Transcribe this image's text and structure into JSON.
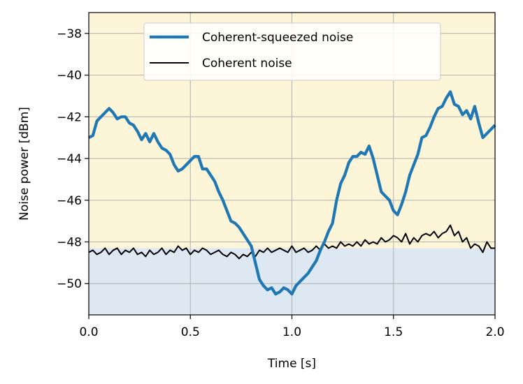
{
  "chart_data": {
    "type": "line",
    "xlabel": "Time [s]",
    "ylabel": "Noise power [dBm]",
    "xlim": [
      0.0,
      2.0
    ],
    "ylim": [
      -51.5,
      -37.0
    ],
    "x_ticks": [
      0.0,
      0.5,
      1.0,
      1.5,
      2.0
    ],
    "x_tick_labels": [
      "0.0",
      "0.5",
      "1.0",
      "1.5",
      "2.0"
    ],
    "y_ticks": [
      -50,
      -48,
      -46,
      -44,
      -42,
      -40,
      -38
    ],
    "y_tick_labels": [
      "−50",
      "−48",
      "−46",
      "−44",
      "−42",
      "−40",
      "−38"
    ],
    "grid": true,
    "legend_position": "top-center",
    "background_regions": [
      {
        "from": -51.5,
        "to": -48.3,
        "color": "#dde8f2"
      },
      {
        "from": -48.3,
        "to": -37.0,
        "color": "#fdf5d7"
      }
    ],
    "series": [
      {
        "name": "Coherent-squeezed noise",
        "color": "#1f77b4",
        "x": [
          0.0,
          0.02,
          0.04,
          0.06,
          0.08,
          0.1,
          0.12,
          0.14,
          0.16,
          0.18,
          0.2,
          0.22,
          0.24,
          0.26,
          0.28,
          0.3,
          0.32,
          0.34,
          0.36,
          0.38,
          0.4,
          0.42,
          0.44,
          0.46,
          0.48,
          0.5,
          0.52,
          0.54,
          0.56,
          0.58,
          0.6,
          0.62,
          0.64,
          0.66,
          0.68,
          0.7,
          0.72,
          0.74,
          0.76,
          0.78,
          0.8,
          0.82,
          0.84,
          0.86,
          0.88,
          0.9,
          0.92,
          0.94,
          0.96,
          0.98,
          1.0,
          1.02,
          1.04,
          1.06,
          1.08,
          1.1,
          1.12,
          1.14,
          1.16,
          1.18,
          1.2,
          1.22,
          1.24,
          1.26,
          1.28,
          1.3,
          1.32,
          1.34,
          1.36,
          1.38,
          1.4,
          1.42,
          1.44,
          1.46,
          1.48,
          1.5,
          1.52,
          1.54,
          1.56,
          1.58,
          1.6,
          1.62,
          1.64,
          1.66,
          1.68,
          1.7,
          1.72,
          1.74,
          1.76,
          1.78,
          1.8,
          1.82,
          1.84,
          1.86,
          1.88,
          1.9,
          1.92,
          1.94,
          1.96,
          1.98,
          2.0
        ],
        "values": [
          -43.0,
          -42.9,
          -42.2,
          -42.0,
          -41.8,
          -41.6,
          -41.8,
          -42.1,
          -42.0,
          -42.0,
          -42.3,
          -42.4,
          -42.7,
          -43.1,
          -42.8,
          -43.2,
          -42.8,
          -43.2,
          -43.5,
          -43.6,
          -43.8,
          -44.3,
          -44.6,
          -44.5,
          -44.3,
          -44.1,
          -43.9,
          -43.9,
          -44.5,
          -44.5,
          -44.8,
          -45.1,
          -45.6,
          -46.0,
          -46.5,
          -47.0,
          -47.1,
          -47.3,
          -47.6,
          -47.9,
          -48.2,
          -49.0,
          -49.8,
          -50.1,
          -50.3,
          -50.2,
          -50.5,
          -50.4,
          -50.2,
          -50.3,
          -50.5,
          -50.1,
          -49.9,
          -49.7,
          -49.5,
          -49.2,
          -48.9,
          -48.4,
          -48.0,
          -47.5,
          -47.1,
          -46.0,
          -45.2,
          -44.8,
          -44.2,
          -43.9,
          -43.9,
          -43.7,
          -43.8,
          -43.4,
          -44.0,
          -44.8,
          -45.6,
          -45.8,
          -46.0,
          -46.5,
          -46.7,
          -46.2,
          -45.6,
          -44.8,
          -44.3,
          -43.8,
          -43.0,
          -42.9,
          -42.5,
          -42.0,
          -41.6,
          -41.5,
          -41.1,
          -40.8,
          -41.4,
          -41.5,
          -41.9,
          -41.7,
          -42.1,
          -41.5,
          -42.3,
          -43.0,
          -42.8,
          -42.6,
          -42.4
        ]
      },
      {
        "name": "Coherent noise",
        "color": "#000000",
        "x": [
          0.0,
          0.02,
          0.04,
          0.06,
          0.08,
          0.1,
          0.12,
          0.14,
          0.16,
          0.18,
          0.2,
          0.22,
          0.24,
          0.26,
          0.28,
          0.3,
          0.32,
          0.34,
          0.36,
          0.38,
          0.4,
          0.42,
          0.44,
          0.46,
          0.48,
          0.5,
          0.52,
          0.54,
          0.56,
          0.58,
          0.6,
          0.62,
          0.64,
          0.66,
          0.68,
          0.7,
          0.72,
          0.74,
          0.76,
          0.78,
          0.8,
          0.82,
          0.84,
          0.86,
          0.88,
          0.9,
          0.92,
          0.94,
          0.96,
          0.98,
          1.0,
          1.02,
          1.04,
          1.06,
          1.08,
          1.1,
          1.12,
          1.14,
          1.16,
          1.18,
          1.2,
          1.22,
          1.24,
          1.26,
          1.28,
          1.3,
          1.32,
          1.34,
          1.36,
          1.38,
          1.4,
          1.42,
          1.44,
          1.46,
          1.48,
          1.5,
          1.52,
          1.54,
          1.56,
          1.58,
          1.6,
          1.62,
          1.64,
          1.66,
          1.68,
          1.7,
          1.72,
          1.74,
          1.76,
          1.78,
          1.8,
          1.82,
          1.84,
          1.86,
          1.88,
          1.9,
          1.92,
          1.94,
          1.96,
          1.98,
          2.0
        ],
        "values": [
          -48.5,
          -48.4,
          -48.6,
          -48.5,
          -48.3,
          -48.6,
          -48.4,
          -48.3,
          -48.6,
          -48.4,
          -48.5,
          -48.3,
          -48.6,
          -48.5,
          -48.7,
          -48.4,
          -48.6,
          -48.5,
          -48.3,
          -48.6,
          -48.4,
          -48.5,
          -48.2,
          -48.4,
          -48.3,
          -48.6,
          -48.4,
          -48.5,
          -48.3,
          -48.4,
          -48.6,
          -48.5,
          -48.4,
          -48.6,
          -48.7,
          -48.5,
          -48.6,
          -48.8,
          -48.6,
          -48.7,
          -48.5,
          -48.7,
          -48.4,
          -48.5,
          -48.3,
          -48.5,
          -48.4,
          -48.3,
          -48.4,
          -48.5,
          -48.2,
          -48.5,
          -48.4,
          -48.3,
          -48.5,
          -48.4,
          -48.2,
          -48.4,
          -48.1,
          -48.3,
          -48.2,
          -48.3,
          -48.0,
          -48.2,
          -48.1,
          -48.2,
          -48.0,
          -48.2,
          -47.9,
          -48.1,
          -48.0,
          -48.1,
          -47.8,
          -48.0,
          -47.9,
          -47.7,
          -47.8,
          -48.0,
          -47.6,
          -48.1,
          -47.8,
          -48.0,
          -47.7,
          -47.6,
          -47.7,
          -47.5,
          -47.8,
          -47.6,
          -47.5,
          -47.2,
          -47.7,
          -47.5,
          -48.0,
          -47.8,
          -48.3,
          -48.1,
          -48.2,
          -48.5,
          -48.0,
          -48.3,
          -48.3
        ]
      }
    ]
  }
}
